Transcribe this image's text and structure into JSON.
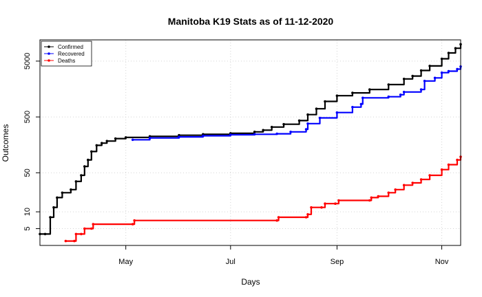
{
  "chart_data": {
    "type": "line",
    "title": "Manitoba K19 Stats as of 11-12-2020",
    "xlabel": "Days",
    "ylabel": "Outcomes",
    "y_scale": "log",
    "xlim": [
      "2020-03-12",
      "2020-11-12"
    ],
    "ylim": [
      2.5,
      12000
    ],
    "x_ticks": [
      {
        "label": "May",
        "date": "2020-05-01"
      },
      {
        "label": "Jul",
        "date": "2020-07-01"
      },
      {
        "label": "Sep",
        "date": "2020-09-01"
      },
      {
        "label": "Nov",
        "date": "2020-11-01"
      }
    ],
    "y_ticks": [
      5,
      10,
      50,
      500,
      5000
    ],
    "grid": true,
    "legend_position": "top-left",
    "series": [
      {
        "name": "Confirmed",
        "color": "#000000",
        "points": [
          [
            "2020-03-12",
            4
          ],
          [
            "2020-03-15",
            4
          ],
          [
            "2020-03-18",
            8
          ],
          [
            "2020-03-20",
            12
          ],
          [
            "2020-03-22",
            18
          ],
          [
            "2020-03-25",
            22
          ],
          [
            "2020-03-30",
            25
          ],
          [
            "2020-04-02",
            35
          ],
          [
            "2020-04-05",
            45
          ],
          [
            "2020-04-07",
            65
          ],
          [
            "2020-04-09",
            85
          ],
          [
            "2020-04-11",
            120
          ],
          [
            "2020-04-14",
            155
          ],
          [
            "2020-04-17",
            170
          ],
          [
            "2020-04-20",
            185
          ],
          [
            "2020-04-25",
            205
          ],
          [
            "2020-05-01",
            215
          ],
          [
            "2020-05-15",
            225
          ],
          [
            "2020-06-01",
            235
          ],
          [
            "2020-06-15",
            245
          ],
          [
            "2020-07-01",
            255
          ],
          [
            "2020-07-15",
            270
          ],
          [
            "2020-07-20",
            290
          ],
          [
            "2020-07-25",
            330
          ],
          [
            "2020-08-01",
            370
          ],
          [
            "2020-08-10",
            430
          ],
          [
            "2020-08-15",
            550
          ],
          [
            "2020-08-20",
            700
          ],
          [
            "2020-08-25",
            950
          ],
          [
            "2020-09-01",
            1200
          ],
          [
            "2020-09-10",
            1350
          ],
          [
            "2020-09-20",
            1550
          ],
          [
            "2020-10-01",
            1900
          ],
          [
            "2020-10-10",
            2400
          ],
          [
            "2020-10-15",
            2700
          ],
          [
            "2020-10-20",
            3400
          ],
          [
            "2020-10-25",
            4100
          ],
          [
            "2020-11-01",
            5500
          ],
          [
            "2020-11-05",
            7000
          ],
          [
            "2020-11-09",
            8500
          ],
          [
            "2020-11-12",
            10000
          ]
        ]
      },
      {
        "name": "Recovered",
        "color": "#0000ff",
        "points": [
          [
            "2020-05-05",
            195
          ],
          [
            "2020-05-15",
            210
          ],
          [
            "2020-06-01",
            220
          ],
          [
            "2020-06-15",
            230
          ],
          [
            "2020-07-01",
            240
          ],
          [
            "2020-07-15",
            245
          ],
          [
            "2020-07-28",
            250
          ],
          [
            "2020-08-05",
            270
          ],
          [
            "2020-08-14",
            300
          ],
          [
            "2020-08-15",
            380
          ],
          [
            "2020-08-22",
            480
          ],
          [
            "2020-09-01",
            600
          ],
          [
            "2020-09-10",
            750
          ],
          [
            "2020-09-15",
            850
          ],
          [
            "2020-09-16",
            1100
          ],
          [
            "2020-10-01",
            1150
          ],
          [
            "2020-10-08",
            1250
          ],
          [
            "2020-10-10",
            1400
          ],
          [
            "2020-10-20",
            1550
          ],
          [
            "2020-10-22",
            2200
          ],
          [
            "2020-10-28",
            2500
          ],
          [
            "2020-11-01",
            3100
          ],
          [
            "2020-11-05",
            3300
          ],
          [
            "2020-11-10",
            3600
          ],
          [
            "2020-11-12",
            4000
          ]
        ]
      },
      {
        "name": "Deaths",
        "color": "#ff0000",
        "points": [
          [
            "2020-03-27",
            3
          ],
          [
            "2020-04-01",
            3
          ],
          [
            "2020-04-02",
            4
          ],
          [
            "2020-04-05",
            4
          ],
          [
            "2020-04-07",
            5
          ],
          [
            "2020-04-11",
            5
          ],
          [
            "2020-04-12",
            6
          ],
          [
            "2020-05-05",
            6
          ],
          [
            "2020-05-06",
            7
          ],
          [
            "2020-07-28",
            7
          ],
          [
            "2020-07-29",
            8
          ],
          [
            "2020-08-14",
            8
          ],
          [
            "2020-08-15",
            9
          ],
          [
            "2020-08-17",
            12
          ],
          [
            "2020-08-23",
            12
          ],
          [
            "2020-08-25",
            14
          ],
          [
            "2020-08-31",
            14
          ],
          [
            "2020-09-02",
            16
          ],
          [
            "2020-09-20",
            16
          ],
          [
            "2020-09-21",
            18
          ],
          [
            "2020-09-25",
            19
          ],
          [
            "2020-10-01",
            22
          ],
          [
            "2020-10-05",
            25
          ],
          [
            "2020-10-10",
            30
          ],
          [
            "2020-10-15",
            33
          ],
          [
            "2020-10-20",
            38
          ],
          [
            "2020-10-25",
            45
          ],
          [
            "2020-11-01",
            57
          ],
          [
            "2020-11-05",
            70
          ],
          [
            "2020-11-10",
            85
          ],
          [
            "2020-11-12",
            97
          ]
        ]
      }
    ]
  }
}
